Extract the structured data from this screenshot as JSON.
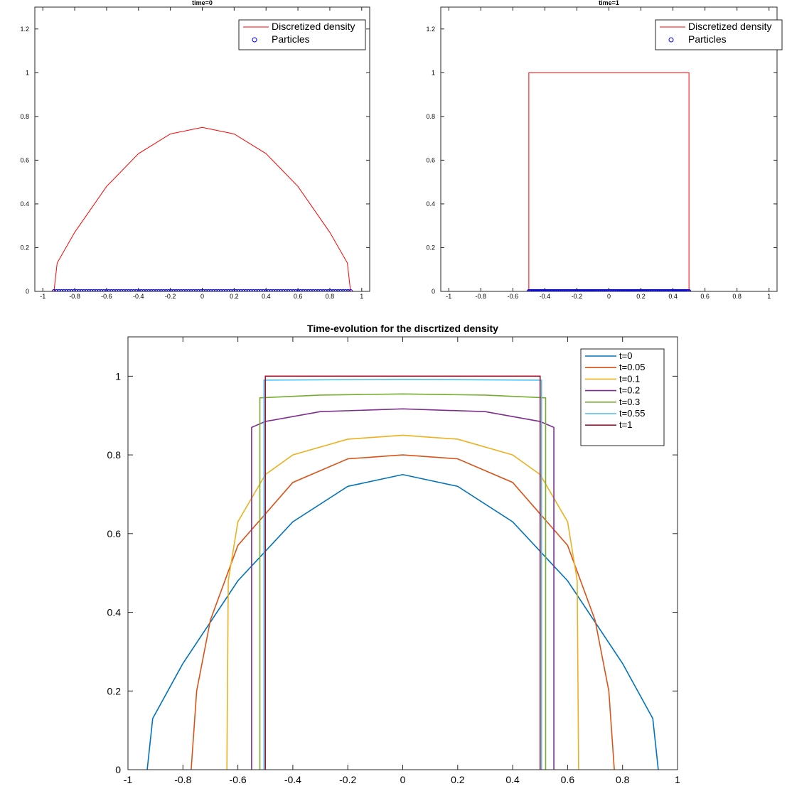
{
  "chart_data": [
    {
      "type": "line",
      "title": "time=0",
      "xlim": [
        -1.05,
        1.05
      ],
      "ylim": [
        0,
        1.3
      ],
      "xticks": [
        "-1",
        "-0.8",
        "-0.6",
        "-0.4",
        "-0.2",
        "0",
        "0.2",
        "0.4",
        "0.6",
        "0.8",
        "1"
      ],
      "yticks": [
        "0",
        "0.2",
        "0.4",
        "0.6",
        "0.8",
        "1",
        "1.2"
      ],
      "legend": {
        "position": "top-right",
        "entries": [
          "Discretized density",
          "Particles"
        ]
      },
      "series": [
        {
          "name": "Discretized density",
          "kind": "density",
          "color": "#ff0000",
          "x": [
            -0.93,
            -0.91,
            -0.8,
            -0.6,
            -0.4,
            -0.2,
            0,
            0.2,
            0.4,
            0.6,
            0.8,
            0.91,
            0.93
          ],
          "y": [
            0,
            0.13,
            0.27,
            0.48,
            0.63,
            0.72,
            0.75,
            0.72,
            0.63,
            0.48,
            0.27,
            0.13,
            0
          ]
        },
        {
          "name": "Particles",
          "kind": "particles",
          "color": "#0000ff",
          "range": [
            -0.93,
            0.93
          ],
          "count": 120,
          "y": 0
        }
      ]
    },
    {
      "type": "line",
      "title": "time=1",
      "xlim": [
        -1.05,
        1.05
      ],
      "ylim": [
        0,
        1.3
      ],
      "xticks": [
        "-1",
        "-0.8",
        "-0.6",
        "-0.4",
        "-0.2",
        "0",
        "0.2",
        "0.4",
        "0.6",
        "0.8",
        "1"
      ],
      "yticks": [
        "0",
        "0.2",
        "0.4",
        "0.6",
        "0.8",
        "1",
        "1.2"
      ],
      "legend": {
        "position": "top-right",
        "entries": [
          "Discretized density",
          "Particles"
        ]
      },
      "series": [
        {
          "name": "Discretized density",
          "kind": "density",
          "color": "#ff0000",
          "x": [
            -0.5,
            -0.5,
            0.5,
            0.5
          ],
          "y": [
            0,
            1,
            1,
            0
          ]
        },
        {
          "name": "Particles",
          "kind": "particles",
          "color": "#0000ff",
          "range": [
            -0.5,
            0.5
          ],
          "count": 150,
          "y": 0
        }
      ]
    },
    {
      "type": "line",
      "title": "Time-evolution for the discrtized density",
      "xlim": [
        -1,
        1
      ],
      "ylim": [
        0,
        1.1
      ],
      "xticks": [
        "-1",
        "-0.8",
        "-0.6",
        "-0.4",
        "-0.2",
        "0",
        "0.2",
        "0.4",
        "0.6",
        "0.8",
        "1"
      ],
      "yticks": [
        "0",
        "0.2",
        "0.4",
        "0.6",
        "0.8",
        "1"
      ],
      "legend": {
        "position": "top-right"
      },
      "series": [
        {
          "name": "t=0",
          "color": "#0072bd",
          "x": [
            -0.93,
            -0.91,
            -0.8,
            -0.6,
            -0.4,
            -0.2,
            0,
            0.2,
            0.4,
            0.6,
            0.8,
            0.91,
            0.93
          ],
          "y": [
            0,
            0.13,
            0.27,
            0.48,
            0.63,
            0.72,
            0.75,
            0.72,
            0.63,
            0.48,
            0.27,
            0.13,
            0
          ]
        },
        {
          "name": "t=0.05",
          "color": "#d95319",
          "x": [
            -0.77,
            -0.75,
            -0.7,
            -0.6,
            -0.4,
            -0.2,
            0,
            0.2,
            0.4,
            0.6,
            0.7,
            0.75,
            0.77
          ],
          "y": [
            0,
            0.2,
            0.38,
            0.57,
            0.73,
            0.79,
            0.8,
            0.79,
            0.73,
            0.57,
            0.38,
            0.2,
            0
          ]
        },
        {
          "name": "t=0.1",
          "color": "#edb120",
          "x": [
            -0.64,
            -0.635,
            -0.6,
            -0.5,
            -0.4,
            -0.2,
            0,
            0.2,
            0.4,
            0.5,
            0.6,
            0.635,
            0.64
          ],
          "y": [
            0,
            0.48,
            0.63,
            0.75,
            0.8,
            0.84,
            0.85,
            0.84,
            0.8,
            0.75,
            0.63,
            0.48,
            0
          ]
        },
        {
          "name": "t=0.2",
          "color": "#7e2f8e",
          "x": [
            -0.55,
            -0.55,
            -0.5,
            -0.3,
            0,
            0.3,
            0.5,
            0.55,
            0.55
          ],
          "y": [
            0,
            0.87,
            0.885,
            0.91,
            0.917,
            0.91,
            0.885,
            0.87,
            0
          ]
        },
        {
          "name": "t=0.3",
          "color": "#77ac30",
          "x": [
            -0.52,
            -0.52,
            -0.3,
            0,
            0.3,
            0.52,
            0.52
          ],
          "y": [
            0,
            0.945,
            0.952,
            0.955,
            0.952,
            0.945,
            0
          ]
        },
        {
          "name": "t=0.55",
          "color": "#4dbeee",
          "x": [
            -0.505,
            -0.505,
            0,
            0.505,
            0.505
          ],
          "y": [
            0,
            0.99,
            0.992,
            0.99,
            0
          ]
        },
        {
          "name": "t=1",
          "color": "#a2142f",
          "x": [
            -0.5,
            -0.5,
            0.5,
            0.5
          ],
          "y": [
            0,
            1,
            1,
            0
          ]
        }
      ]
    }
  ]
}
